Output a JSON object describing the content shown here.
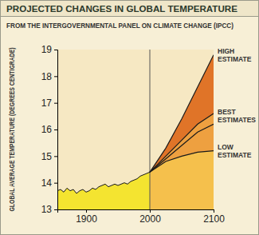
{
  "chart_data": {
    "type": "area",
    "title": "PROJECTED CHANGES IN GLOBAL TEMPERATURE",
    "subtitle": "FROM THE INTERGOVERNMENTAL PANEL ON CLIMATE CHANGE (IPCC)",
    "y_label": "GLOBAL AVERAGE TEMPERATURE (DEGREES CENTIGRADE)",
    "xlim": [
      1855,
      2100
    ],
    "ylim": [
      13,
      19
    ],
    "xticks": [
      1900,
      2000,
      2100
    ],
    "yticks": [
      13,
      14,
      15,
      16,
      17,
      18,
      19
    ],
    "series": [
      {
        "color": "#f4e430",
        "x": [
          1855,
          1860,
          1865,
          1870,
          1875,
          1880,
          1885,
          1890,
          1895,
          1900,
          1905,
          1910,
          1915,
          1920,
          1925,
          1930,
          1935,
          1940,
          1945,
          1950,
          1955,
          1960,
          1965,
          1970,
          1975,
          1980,
          1985,
          1990,
          1995,
          2000
        ],
        "values": [
          13.7,
          13.75,
          13.65,
          13.8,
          13.7,
          13.75,
          13.6,
          13.7,
          13.75,
          13.65,
          13.7,
          13.8,
          13.75,
          13.85,
          13.9,
          13.95,
          13.85,
          13.9,
          13.95,
          13.9,
          13.95,
          14.0,
          13.95,
          14.05,
          14.1,
          14.15,
          14.25,
          14.3,
          14.35,
          14.4
        ]
      },
      {
        "color": "#e07428",
        "x": [
          2000,
          2025,
          2050,
          2075,
          2100
        ],
        "values": [
          14.4,
          15.3,
          16.4,
          17.6,
          18.8
        ]
      },
      {
        "color": "#eea040",
        "x": [
          2000,
          2025,
          2050,
          2075,
          2100
        ],
        "values": [
          14.4,
          15.0,
          15.6,
          16.2,
          16.6
        ]
      },
      {
        "color": "#eea040",
        "x": [
          2000,
          2025,
          2050,
          2075,
          2100
        ],
        "values": [
          14.4,
          14.9,
          15.4,
          15.9,
          16.2
        ]
      },
      {
        "color": "#f5c04c",
        "x": [
          2000,
          2025,
          2050,
          2075,
          2100
        ],
        "values": [
          14.4,
          14.8,
          15.0,
          15.15,
          15.2
        ]
      }
    ],
    "annotations": [
      {
        "text": "HIGH ESTIMATE",
        "y": 18.8
      },
      {
        "text": "BEST ESTIMATES",
        "y": 16.5
      },
      {
        "text": "LOW ESTIMATE",
        "y": 15.2
      }
    ]
  }
}
